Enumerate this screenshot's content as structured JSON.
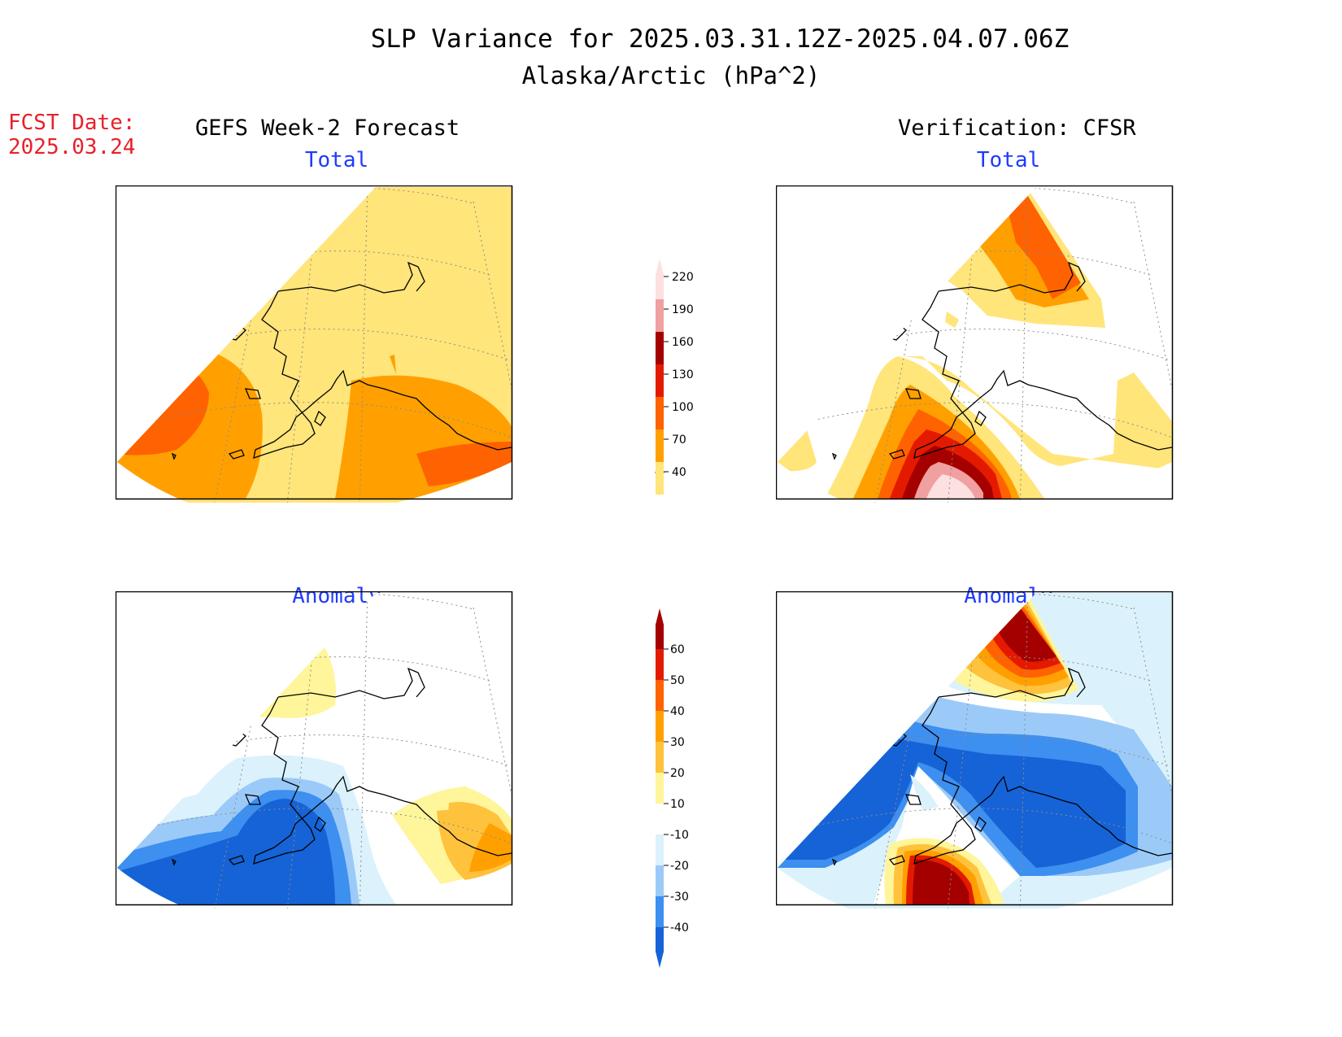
{
  "header": {
    "title": "SLP Variance for 2025.03.31.12Z-2025.04.07.06Z",
    "subtitle": "Alaska/Arctic (hPa^2)",
    "fcst_label": "FCST Date:",
    "fcst_date": "2025.03.24"
  },
  "columns": {
    "left": "GEFS Week-2 Forecast",
    "right": "Verification: CFSR"
  },
  "panels": {
    "fcst_total": "Total",
    "verif_total": "Total",
    "fcst_anomaly": "Anomaly",
    "verif_anomaly": "Anomaly"
  },
  "legends": {
    "total": {
      "levels": [
        "40",
        "70",
        "100",
        "130",
        "160",
        "190",
        "220"
      ],
      "colors": [
        "#ffe57a",
        "#ffa000",
        "#ff6200",
        "#e41a00",
        "#a50000",
        "#f0a0a0",
        "#fde0e0"
      ]
    },
    "anomaly": {
      "levels": [
        "-40",
        "-30",
        "-20",
        "-10",
        "10",
        "20",
        "30",
        "40",
        "50",
        "60"
      ],
      "colors": [
        "#1563d6",
        "#3d8ff0",
        "#9ccaf8",
        "#dbf2fc",
        "#ffffff",
        "#fff59a",
        "#ffc23c",
        "#ffa000",
        "#ff6200",
        "#e41a00",
        "#a50000"
      ]
    }
  },
  "colors": {
    "title_blue": "#1f3bff",
    "fcst_red": "#e8202a"
  }
}
